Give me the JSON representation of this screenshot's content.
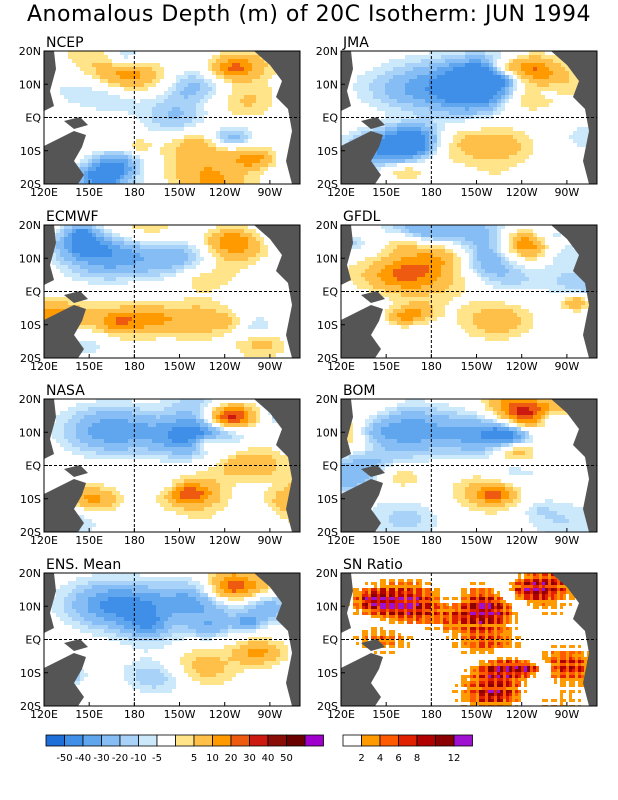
{
  "title": "Anomalous Depth (m) of 20C Isotherm: JUN 1994",
  "chart_data": [
    {
      "type": "heatmap",
      "title": "NCEP",
      "xlabel": "",
      "ylabel": "",
      "x_ticks": [
        "120E",
        "150E",
        "180",
        "150W",
        "120W",
        "90W"
      ],
      "y_ticks": [
        "20N",
        "10N",
        "EQ",
        "10S",
        "20S"
      ],
      "xlim": [
        120,
        290
      ],
      "ylim": [
        -20,
        20
      ]
    },
    {
      "type": "heatmap",
      "title": "JMA",
      "x_ticks": [
        "120E",
        "150E",
        "180",
        "150W",
        "120W",
        "90W"
      ],
      "y_ticks": [
        "20N",
        "10N",
        "EQ",
        "10S",
        "20S"
      ],
      "xlim": [
        120,
        290
      ],
      "ylim": [
        -20,
        20
      ]
    },
    {
      "type": "heatmap",
      "title": "ECMWF",
      "x_ticks": [
        "120E",
        "150E",
        "180",
        "150W",
        "120W",
        "90W"
      ],
      "y_ticks": [
        "20N",
        "10N",
        "EQ",
        "10S",
        "20S"
      ],
      "xlim": [
        120,
        290
      ],
      "ylim": [
        -20,
        20
      ]
    },
    {
      "type": "heatmap",
      "title": "GFDL",
      "x_ticks": [
        "120E",
        "150E",
        "180",
        "150W",
        "120W",
        "90W"
      ],
      "y_ticks": [
        "20N",
        "10N",
        "EQ",
        "10S",
        "20S"
      ],
      "xlim": [
        120,
        290
      ],
      "ylim": [
        -20,
        20
      ]
    },
    {
      "type": "heatmap",
      "title": "NASA",
      "x_ticks": [
        "120E",
        "150E",
        "180",
        "150W",
        "120W",
        "90W"
      ],
      "y_ticks": [
        "20N",
        "10N",
        "EQ",
        "10S",
        "20S"
      ],
      "xlim": [
        120,
        290
      ],
      "ylim": [
        -20,
        20
      ]
    },
    {
      "type": "heatmap",
      "title": "BOM",
      "x_ticks": [
        "120E",
        "150E",
        "180",
        "150W",
        "120W",
        "90W"
      ],
      "y_ticks": [
        "20N",
        "10N",
        "EQ",
        "10S",
        "20S"
      ],
      "xlim": [
        120,
        290
      ],
      "ylim": [
        -20,
        20
      ]
    },
    {
      "type": "heatmap",
      "title": "ENS. Mean",
      "x_ticks": [
        "120E",
        "150E",
        "180",
        "150W",
        "120W",
        "90W"
      ],
      "y_ticks": [
        "20N",
        "10N",
        "EQ",
        "10S",
        "20S"
      ],
      "xlim": [
        120,
        290
      ],
      "ylim": [
        -20,
        20
      ]
    },
    {
      "type": "heatmap",
      "title": "SN Ratio",
      "x_ticks": [
        "120E",
        "150E",
        "180",
        "150W",
        "120W",
        "90W"
      ],
      "y_ticks": [
        "20N",
        "10N",
        "EQ",
        "10S",
        "20S"
      ],
      "xlim": [
        120,
        290
      ],
      "ylim": [
        -20,
        20
      ]
    }
  ],
  "legend_depth": {
    "labels": [
      "-50",
      "-40",
      "-30",
      "-20",
      "-10",
      "-5",
      "5",
      "10",
      "20",
      "30",
      "40",
      "50"
    ],
    "colors": [
      "#1e6fd8",
      "#3f8fe8",
      "#5fa6ee",
      "#86bdf5",
      "#a8d2f8",
      "#cce8fb",
      "#ffffff",
      "#ffe48a",
      "#ffc04a",
      "#ff9a00",
      "#ee5a10",
      "#cc1a10",
      "#8a0e08",
      "#6a0000",
      "#a000cc"
    ]
  },
  "legend_ratio": {
    "labels": [
      "2",
      "4",
      "6",
      "8",
      "12"
    ],
    "colors": [
      "#ffffff",
      "#ff9a00",
      "#ff5a00",
      "#e02000",
      "#b00000",
      "#8a0000",
      "#a010d0"
    ]
  },
  "colors": {
    "land": "#555555",
    "dashline": "#000000"
  }
}
